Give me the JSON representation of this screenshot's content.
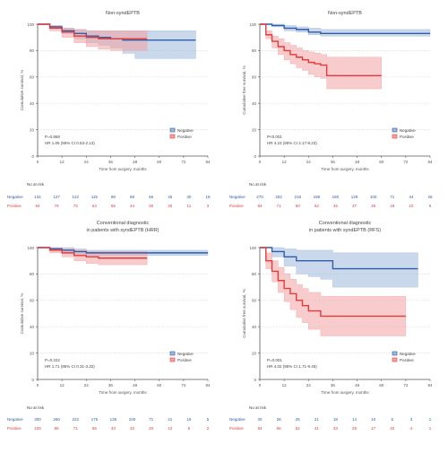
{
  "colors": {
    "negative": "#2f5da8",
    "positive": "#e23b3b",
    "negative_band": "#9fb8dc",
    "positive_band": "#f3a3a3",
    "axis": "#555555",
    "grid": "#d9d9d9"
  },
  "number_at_risk_label": "No at risk",
  "chart_data": [
    {
      "type": "line",
      "title": "Non-syndEPTB",
      "subtitle": "",
      "ylabel": "Cumulative survival, %",
      "xlabel": "Time from surgery, months",
      "x_ticks": [
        "0",
        "12",
        "24",
        "36",
        "48",
        "60",
        "72",
        "84"
      ],
      "y_ticks": [
        "100",
        "80",
        "60",
        "40",
        "20",
        "0"
      ],
      "xlim": [
        0,
        84
      ],
      "ylim": [
        0,
        100
      ],
      "grid": "horizontal dotted",
      "legend": "bottom-right",
      "annotation_lines": [
        "P=0.868",
        "HR 1.06 (95% CI 0.53-2.13)"
      ],
      "series": [
        {
          "name": "Negative",
          "color_key": "negative",
          "x": [
            0,
            6,
            12,
            18,
            24,
            30,
            36,
            42,
            48,
            54,
            60,
            66,
            72,
            78
          ],
          "y": [
            100,
            98,
            95,
            93,
            91,
            90,
            89,
            88,
            88,
            88,
            88,
            88,
            88,
            88
          ],
          "lower": [
            100,
            97,
            93,
            89,
            86,
            84,
            82,
            78,
            74,
            74,
            74,
            74,
            74,
            74
          ],
          "upper": [
            100,
            99,
            97,
            96,
            95,
            95,
            95,
            95,
            95,
            95,
            95,
            95,
            95,
            95
          ]
        },
        {
          "name": "Positive",
          "color_key": "positive",
          "x": [
            0,
            6,
            12,
            18,
            24,
            30,
            36,
            42,
            48,
            54
          ],
          "y": [
            100,
            97,
            94,
            91,
            90,
            89,
            89,
            89,
            89,
            89
          ],
          "lower": [
            100,
            95,
            90,
            86,
            83,
            81,
            80,
            80,
            80,
            80
          ],
          "upper": [
            100,
            99,
            97,
            96,
            95,
            95,
            95,
            95,
            95,
            95
          ]
        }
      ],
      "at_risk_rows": [
        {
          "label": "Negative",
          "color_key": "negative",
          "values": [
            "131",
            "127",
            "122",
            "115",
            "98",
            "88",
            "66",
            "45",
            "30",
            "18"
          ]
        },
        {
          "label": "Positive",
          "color_key": "positive",
          "values": [
            "84",
            "79",
            "73",
            "64",
            "56",
            "44",
            "30",
            "20",
            "11",
            "3"
          ]
        }
      ]
    },
    {
      "type": "line",
      "title": "Non-syndEPTB",
      "subtitle": "",
      "ylabel": "Cumulative free survival, %",
      "xlabel": "Time from surgery, months",
      "x_ticks": [
        "0",
        "12",
        "24",
        "36",
        "48",
        "60",
        "72",
        "84"
      ],
      "y_ticks": [
        "100",
        "80",
        "60",
        "40",
        "20",
        "0"
      ],
      "xlim": [
        0,
        84
      ],
      "ylim": [
        0,
        100
      ],
      "grid": "horizontal dotted",
      "legend": "bottom-right",
      "annotation_lines": [
        "P<0.001",
        "HR 4.23 (95% CI 2.17-8.23)"
      ],
      "series": [
        {
          "name": "Negative",
          "color_key": "negative",
          "x": [
            0,
            6,
            12,
            18,
            24,
            30,
            36,
            42,
            48,
            54,
            60,
            66,
            72,
            78,
            84
          ],
          "y": [
            100,
            99,
            97,
            96,
            94,
            93,
            93,
            93,
            93,
            93,
            93,
            93,
            93,
            93,
            93
          ],
          "lower": [
            100,
            98,
            95,
            94,
            92,
            91,
            91,
            91,
            91,
            91,
            91,
            91,
            91,
            91,
            91
          ],
          "upper": [
            100,
            100,
            99,
            98,
            97,
            96,
            96,
            96,
            96,
            96,
            96,
            96,
            96,
            96,
            96
          ]
        },
        {
          "name": "Positive",
          "color_key": "positive",
          "x": [
            0,
            3,
            6,
            9,
            12,
            15,
            18,
            21,
            24,
            27,
            30,
            33,
            36,
            42,
            48,
            54,
            60
          ],
          "y": [
            100,
            92,
            87,
            83,
            80,
            77,
            75,
            73,
            71,
            70,
            69,
            61,
            61,
            61,
            61,
            61,
            61
          ],
          "lower": [
            100,
            89,
            82,
            77,
            73,
            70,
            67,
            65,
            62,
            60,
            59,
            51,
            51,
            51,
            51,
            51,
            51
          ],
          "upper": [
            100,
            95,
            91,
            89,
            86,
            84,
            82,
            80,
            79,
            78,
            77,
            75,
            75,
            75,
            75,
            75,
            75
          ]
        }
      ],
      "at_risk_rows": [
        {
          "label": "Negative",
          "color_key": "negative",
          "values": [
            "270",
            "252",
            "218",
            "188",
            "160",
            "129",
            "100",
            "71",
            "44",
            "26"
          ]
        },
        {
          "label": "Positive",
          "color_key": "positive",
          "values": [
            "84",
            "71",
            "60",
            "52",
            "45",
            "37",
            "28",
            "19",
            "10",
            "5"
          ]
        }
      ]
    },
    {
      "type": "line",
      "title": "Conventional diagnostic",
      "subtitle": "in patients with syndEPTB (HRR)",
      "ylabel": "Cumulative survival, %",
      "xlabel": "Time from surgery, months",
      "x_ticks": [
        "0",
        "12",
        "24",
        "36",
        "48",
        "60",
        "72",
        "84"
      ],
      "y_ticks": [
        "100",
        "80",
        "60",
        "40",
        "20",
        "0"
      ],
      "xlim": [
        0,
        84
      ],
      "ylim": [
        0,
        100
      ],
      "grid": "horizontal dotted",
      "legend": "bottom-right",
      "annotation_lines": [
        "P=0.222",
        "HR 1.71 (95% CI 0.31-3.32)"
      ],
      "series": [
        {
          "name": "Negative",
          "color_key": "negative",
          "x": [
            0,
            6,
            12,
            18,
            24,
            30,
            36,
            42,
            48,
            54,
            60,
            66,
            72,
            78,
            84
          ],
          "y": [
            100,
            99,
            98,
            97,
            96,
            96,
            96,
            96,
            96,
            96,
            96,
            96,
            96,
            96,
            96
          ],
          "lower": [
            100,
            98,
            96,
            95,
            94,
            94,
            94,
            94,
            94,
            94,
            94,
            94,
            94,
            94,
            94
          ],
          "upper": [
            100,
            100,
            100,
            99,
            98,
            98,
            98,
            98,
            98,
            98,
            98,
            98,
            98,
            98,
            98
          ]
        },
        {
          "name": "Positive",
          "color_key": "positive",
          "x": [
            0,
            6,
            12,
            18,
            24,
            30,
            36,
            42,
            48,
            54
          ],
          "y": [
            100,
            98,
            96,
            94,
            93,
            92,
            92,
            92,
            92,
            92
          ],
          "lower": [
            100,
            96,
            93,
            90,
            88,
            87,
            87,
            87,
            87,
            87
          ],
          "upper": [
            100,
            100,
            99,
            98,
            97,
            97,
            97,
            97,
            97,
            97
          ]
        }
      ],
      "at_risk_rows": [
        {
          "label": "Negative",
          "color_key": "negative",
          "values": [
            "300",
            "260",
            "222",
            "175",
            "136",
            "100",
            "71",
            "41",
            "16",
            "5"
          ]
        },
        {
          "label": "Positive",
          "color_key": "positive",
          "values": [
            "100",
            "88",
            "71",
            "55",
            "43",
            "32",
            "20",
            "12",
            "5",
            "2"
          ]
        }
      ]
    },
    {
      "type": "line",
      "title": "Conventional diagnostic",
      "subtitle": "in patients with syndEPTB (RFS)",
      "ylabel": "Cumulative free survival, %",
      "xlabel": "Time from surgery, months",
      "x_ticks": [
        "0",
        "12",
        "24",
        "36",
        "48",
        "60",
        "72",
        "84"
      ],
      "y_ticks": [
        "100",
        "80",
        "60",
        "40",
        "20",
        "0"
      ],
      "xlim": [
        0,
        84
      ],
      "ylim": [
        0,
        100
      ],
      "grid": "horizontal dotted",
      "legend": "bottom-right",
      "annotation_lines": [
        "P=0.001",
        "HR 4.02 (95% CI 1.71-9.45)"
      ],
      "series": [
        {
          "name": "Negative",
          "color_key": "negative",
          "x": [
            0,
            6,
            12,
            18,
            24,
            30,
            36,
            42,
            48,
            54,
            60,
            66,
            72,
            78
          ],
          "y": [
            100,
            97,
            93,
            90,
            90,
            90,
            84,
            84,
            84,
            84,
            84,
            84,
            84,
            84
          ],
          "lower": [
            100,
            93,
            86,
            80,
            78,
            76,
            70,
            70,
            70,
            70,
            70,
            70,
            70,
            70
          ],
          "upper": [
            100,
            100,
            99,
            98,
            98,
            98,
            96,
            96,
            96,
            96,
            96,
            96,
            96,
            96
          ]
        },
        {
          "name": "Positive",
          "color_key": "positive",
          "x": [
            0,
            3,
            6,
            9,
            12,
            15,
            18,
            21,
            24,
            30,
            36,
            42,
            48,
            54,
            60,
            66,
            72
          ],
          "y": [
            100,
            90,
            82,
            75,
            69,
            65,
            60,
            56,
            52,
            48,
            48,
            48,
            48,
            48,
            48,
            48,
            48
          ],
          "lower": [
            100,
            84,
            74,
            66,
            59,
            53,
            47,
            43,
            38,
            33,
            33,
            33,
            33,
            33,
            33,
            33,
            33
          ],
          "upper": [
            100,
            96,
            90,
            85,
            80,
            76,
            72,
            69,
            66,
            63,
            63,
            63,
            63,
            63,
            63,
            63,
            63
          ]
        }
      ],
      "at_risk_rows": [
        {
          "label": "Negative",
          "color_key": "negative",
          "values": [
            "30",
            "28",
            "25",
            "21",
            "18",
            "14",
            "10",
            "6",
            "3",
            "1"
          ]
        },
        {
          "label": "Positive",
          "color_key": "positive",
          "values": [
            "84",
            "66",
            "52",
            "41",
            "33",
            "25",
            "17",
            "10",
            "4",
            "1"
          ]
        }
      ]
    }
  ]
}
